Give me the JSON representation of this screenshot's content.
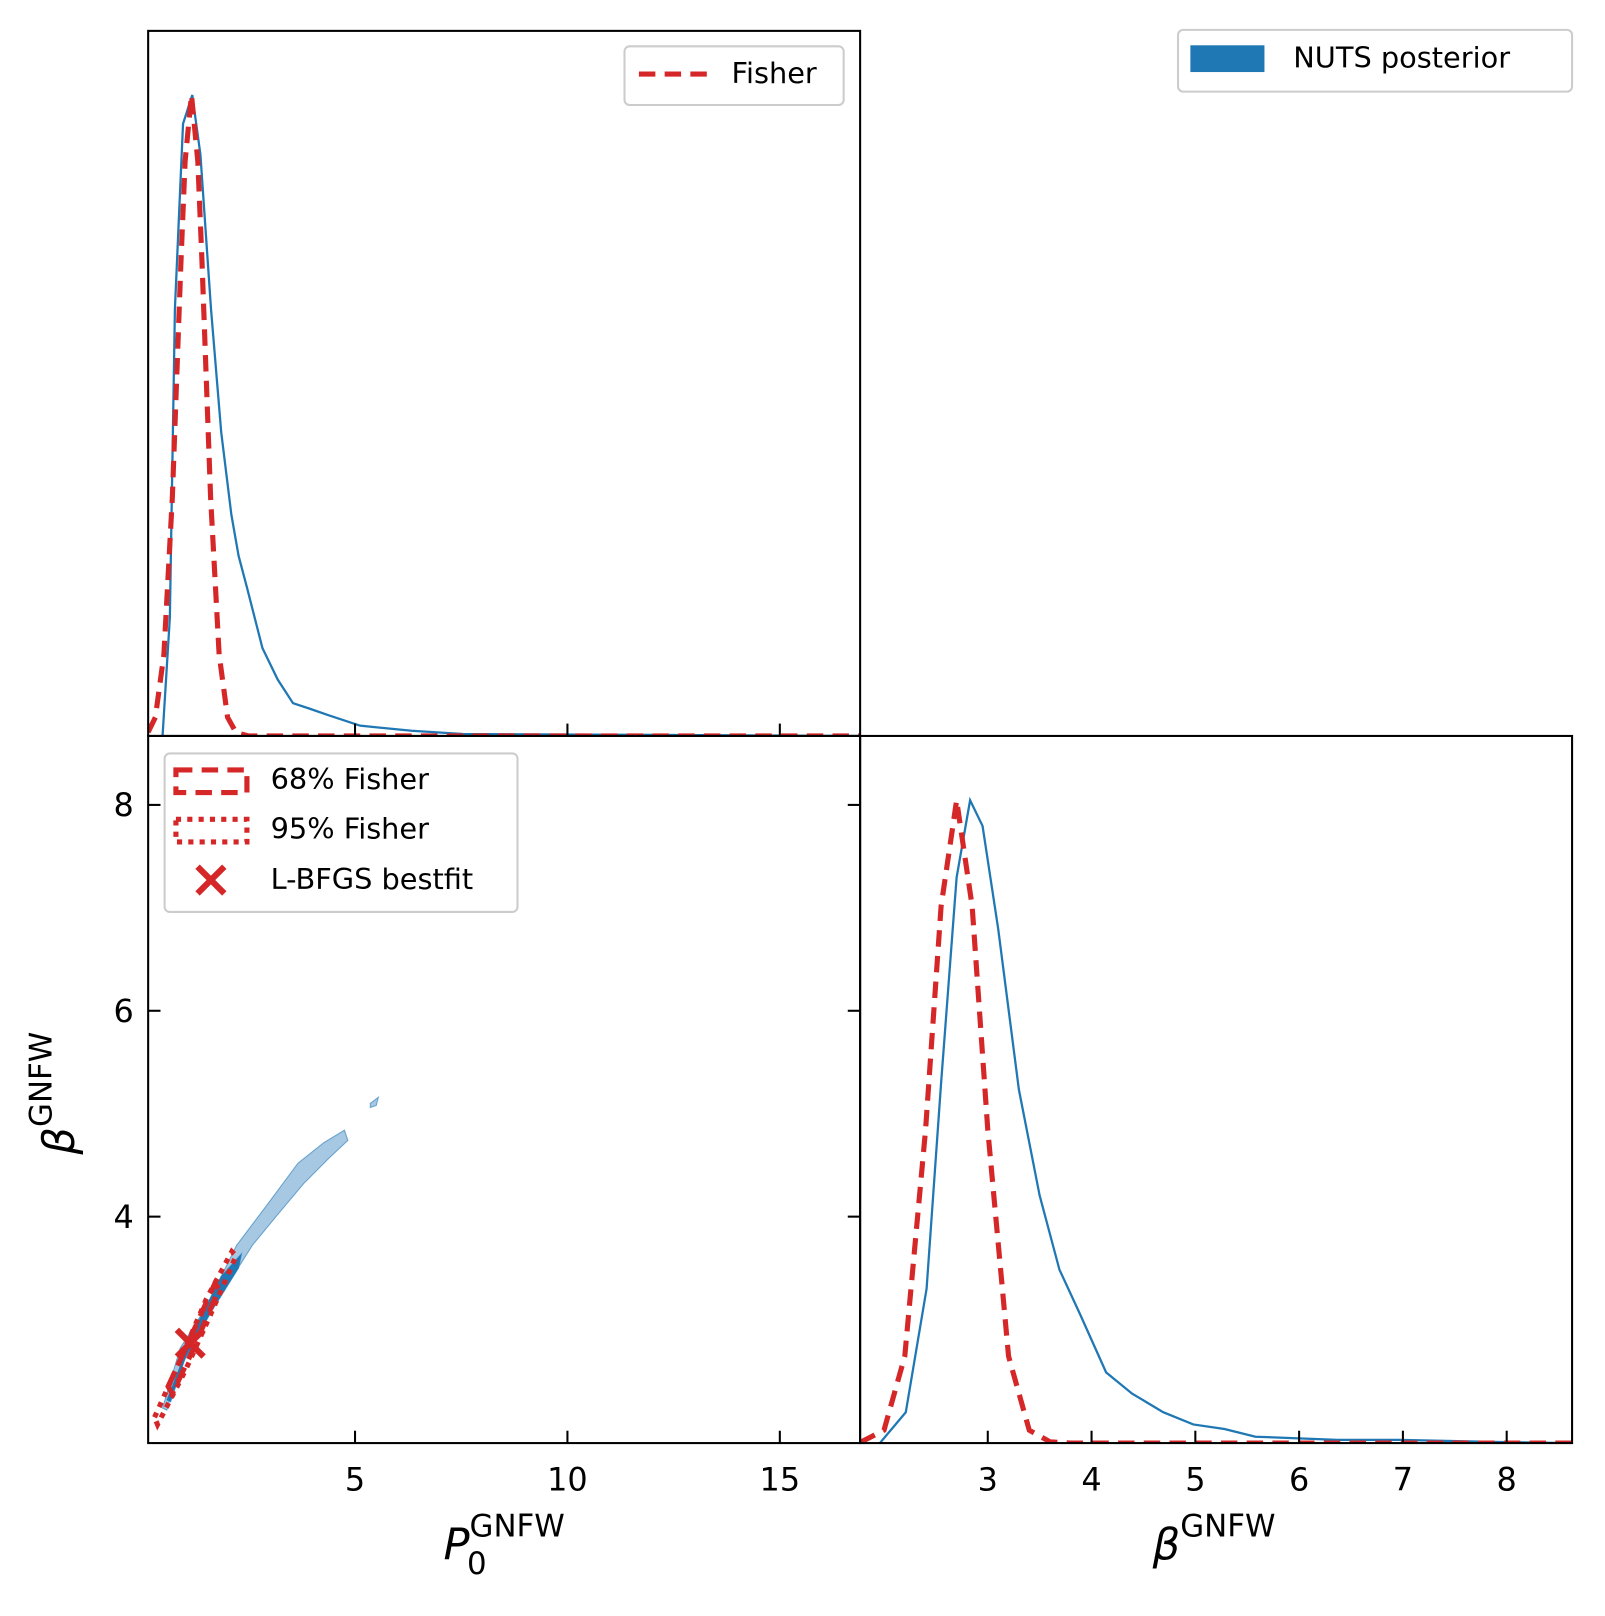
{
  "chart_data": [
    {
      "type": "line",
      "xlim": [
        0.13,
        16.89
      ],
      "ylim": [
        0,
        1.1
      ],
      "legend": "upper right",
      "series": [
        {
          "name": "NUTS posterior",
          "color": "#1f77b4",
          "style": "solid",
          "x": [
            0.47,
            0.64,
            0.76,
            0.95,
            1.17,
            1.36,
            1.61,
            1.85,
            2.09,
            2.26,
            2.45,
            2.82,
            3.18,
            3.54,
            3.91,
            4.39,
            5.12,
            6.33,
            7.54,
            11.17,
            16.89
          ],
          "values": [
            0,
            0.185,
            0.666,
            0.955,
            1.0,
            0.907,
            0.666,
            0.474,
            0.345,
            0.281,
            0.233,
            0.137,
            0.088,
            0.051,
            0.043,
            0.032,
            0.016,
            0.008,
            0.003,
            0.002,
            0
          ]
        },
        {
          "name": "Fisher",
          "color": "#d62728",
          "style": "dashed",
          "x": [
            0.13,
            0.3,
            0.5,
            0.7,
            0.9,
            1.0,
            1.15,
            1.3,
            1.4,
            1.6,
            1.8,
            2.0,
            2.2,
            2.5,
            3,
            5,
            10,
            16.89
          ],
          "values": [
            0.006,
            0.029,
            0.127,
            0.372,
            0.737,
            0.896,
            1,
            0.896,
            0.737,
            0.372,
            0.127,
            0.029,
            0.005,
            0,
            0,
            0,
            0,
            0
          ]
        }
      ]
    },
    {
      "type": "contour",
      "xlabel": {
        "base": "P",
        "sub": "0",
        "sup": "GNFW"
      },
      "ylabel": {
        "base": "β",
        "sup": "GNFW"
      },
      "xlim": [
        0.13,
        16.89
      ],
      "ylim": [
        1.8,
        8.67
      ],
      "xticks": [
        5,
        10,
        15
      ],
      "yticks": [
        4,
        6,
        8
      ],
      "legend": "upper left",
      "regions": [
        {
          "color": "#a6c8e3",
          "polygons": [
            {
              "x": [
                0.47,
                0.88,
                1.49,
                2.21,
                2.94,
                3.66,
                4.27,
                4.75,
                4.83,
                4.39,
                3.79,
                3.18,
                2.58,
                1.97,
                1.36,
                0.76,
                0.57
              ],
              "y": [
                2.14,
                2.72,
                3.12,
                3.72,
                4.12,
                4.52,
                4.72,
                4.84,
                4.74,
                4.57,
                4.32,
                4.02,
                3.72,
                3.32,
                2.92,
                2.42,
                2.12
              ]
            },
            {
              "x": [
                5.36,
                5.55,
                5.5,
                5.36
              ],
              "y": [
                5.1,
                5.16,
                5.08,
                5.06
              ]
            }
          ]
        },
        {
          "color": "#1f77b4",
          "polygons": [
            {
              "x": [
                0.57,
                1.24,
                1.85,
                2.33,
                2.26,
                1.61,
                1.0,
                0.66
              ],
              "y": [
                2.22,
                2.92,
                3.42,
                3.64,
                3.5,
                3.07,
                2.62,
                2.2
              ]
            }
          ]
        }
      ],
      "ellipses": [
        {
          "name": "68% Fisher",
          "style": "dashed",
          "color": "#d62728",
          "x": [
            0.6,
            1.1,
            1.7,
            1.8,
            1.2,
            0.7
          ],
          "y": [
            2.35,
            2.8,
            3.35,
            3.3,
            2.72,
            2.28
          ]
        },
        {
          "name": "95% Fisher",
          "style": "dotted",
          "color": "#d62728",
          "x": [
            0.28,
            0.9,
            1.5,
            2.1,
            2.2,
            1.6,
            1.0,
            0.35
          ],
          "y": [
            2.05,
            2.62,
            3.2,
            3.66,
            3.62,
            3.05,
            2.5,
            1.98
          ]
        }
      ],
      "bestfit": {
        "name": "L-BFGS bestfit",
        "color": "#d62728",
        "x": [
          1.12
        ],
        "y": [
          2.77
        ]
      }
    },
    {
      "type": "line",
      "xlabel": {
        "base": "β",
        "sup": "GNFW"
      },
      "xlim": [
        1.77,
        8.63
      ],
      "ylim": [
        0,
        1.1
      ],
      "xticks": [
        3,
        4,
        5,
        6,
        7,
        8
      ],
      "series": [
        {
          "color": "#1f77b4",
          "style": "solid",
          "x": [
            1.96,
            2.21,
            2.41,
            2.55,
            2.7,
            2.83,
            2.95,
            3.1,
            3.3,
            3.5,
            3.69,
            3.89,
            4.14,
            4.39,
            4.69,
            4.98,
            5.28,
            5.58,
            6.37,
            6.97,
            7.86,
            8.63
          ],
          "values": [
            0,
            0.048,
            0.24,
            0.56,
            0.88,
            1.0,
            0.96,
            0.8,
            0.55,
            0.385,
            0.27,
            0.2,
            0.11,
            0.077,
            0.048,
            0.029,
            0.022,
            0.01,
            0.005,
            0.005,
            0.002,
            0
          ]
        },
        {
          "color": "#d62728",
          "style": "dashed",
          "x": [
            1.77,
            2.0,
            2.2,
            2.4,
            2.55,
            2.7,
            2.85,
            3.0,
            3.2,
            3.4,
            3.6,
            3.8,
            5,
            8.63
          ],
          "values": [
            0.001,
            0.02,
            0.135,
            0.487,
            0.835,
            1,
            0.835,
            0.487,
            0.135,
            0.02,
            0.002,
            0,
            0,
            0
          ]
        }
      ]
    }
  ]
}
